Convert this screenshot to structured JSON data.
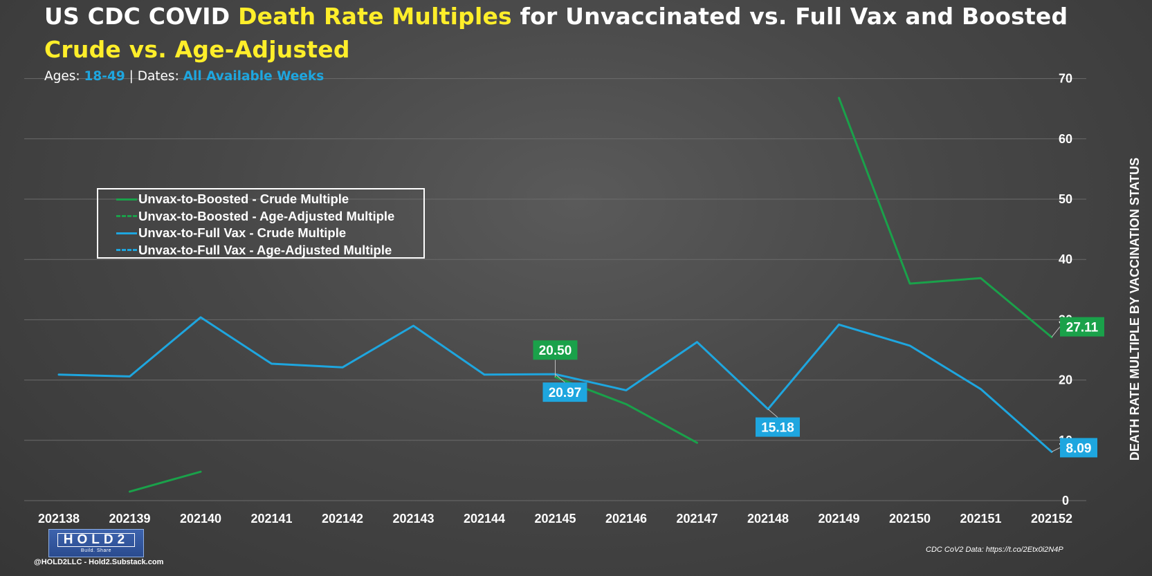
{
  "title": {
    "line1_pre": "US CDC COVID ",
    "line1_highlight": "Death Rate Multiples",
    "line1_post": " for Unvaccinated vs. Full Vax and Boosted",
    "line2": "Crude vs. Age-Adjusted"
  },
  "subtitle": {
    "ages_label": "Ages: ",
    "ages_value": "18-49",
    "separator": " | ",
    "dates_label": "Dates: ",
    "dates_value": "All Available Weeks"
  },
  "legend": [
    {
      "label": "Unvax-to-Boosted - Crude Multiple",
      "color": "#1aa14a",
      "style": "solid"
    },
    {
      "label": "Unvax-to-Boosted - Age-Adjusted Multiple",
      "color": "#1aa14a",
      "style": "dashed"
    },
    {
      "label": "Unvax-to-Full Vax - Crude Multiple",
      "color": "#1ea6df",
      "style": "solid"
    },
    {
      "label": "Unvax-to-Full Vax - Age-Adjusted Multiple",
      "color": "#1ea6df",
      "style": "dashed"
    }
  ],
  "chart_data": {
    "type": "line",
    "title": "US CDC COVID Death Rate Multiples for Unvaccinated vs. Full Vax and Boosted",
    "subtitle": "Crude vs. Age-Adjusted",
    "xlabel": "",
    "ylabel": "DEATH RATE MULTIPLE BY VACCINATION STATUS",
    "y_axis_side": "right",
    "ylim": [
      0,
      70
    ],
    "y_ticks": [
      0,
      10,
      20,
      30,
      40,
      50,
      60,
      70
    ],
    "grid": true,
    "legend_position": "left-middle",
    "categories": [
      "202138",
      "202139",
      "202140",
      "202141",
      "202142",
      "202143",
      "202144",
      "202145",
      "202146",
      "202147",
      "202148",
      "202149",
      "202150",
      "202151",
      "202152"
    ],
    "series": [
      {
        "name": "Unvax-to-Boosted - Crude Multiple",
        "color": "#1aa14a",
        "values": [
          null,
          1.5,
          4.8,
          null,
          null,
          null,
          null,
          20.5,
          16.0,
          9.6,
          null,
          66.8,
          36.0,
          36.9,
          27.11
        ]
      },
      {
        "name": "Unvax-to-Full Vax - Crude Multiple",
        "color": "#1ea6df",
        "values": [
          20.9,
          20.6,
          30.4,
          22.7,
          22.1,
          29.0,
          20.9,
          20.97,
          18.3,
          26.3,
          15.18,
          29.2,
          25.7,
          18.5,
          8.09
        ]
      }
    ],
    "data_labels": [
      {
        "category": "202145",
        "value": "20.50",
        "color": "#1aa14a",
        "anchor": "above"
      },
      {
        "category": "202145",
        "value": "20.97",
        "color": "#1ea6df",
        "anchor": "below"
      },
      {
        "category": "202148",
        "value": "15.18",
        "color": "#1ea6df",
        "anchor": "below"
      },
      {
        "category": "202152",
        "value": "27.11",
        "color": "#1aa14a",
        "anchor": "right"
      },
      {
        "category": "202152",
        "value": "8.09",
        "color": "#1ea6df",
        "anchor": "right"
      }
    ]
  },
  "source_note": "CDC CoV2 Data: https://t.co/2Etx0i2N4P",
  "logo": {
    "brand": "HOLD2",
    "tagline": "Build. Share"
  },
  "handle": "@HOLD2LLC - Hold2.Substack.com"
}
